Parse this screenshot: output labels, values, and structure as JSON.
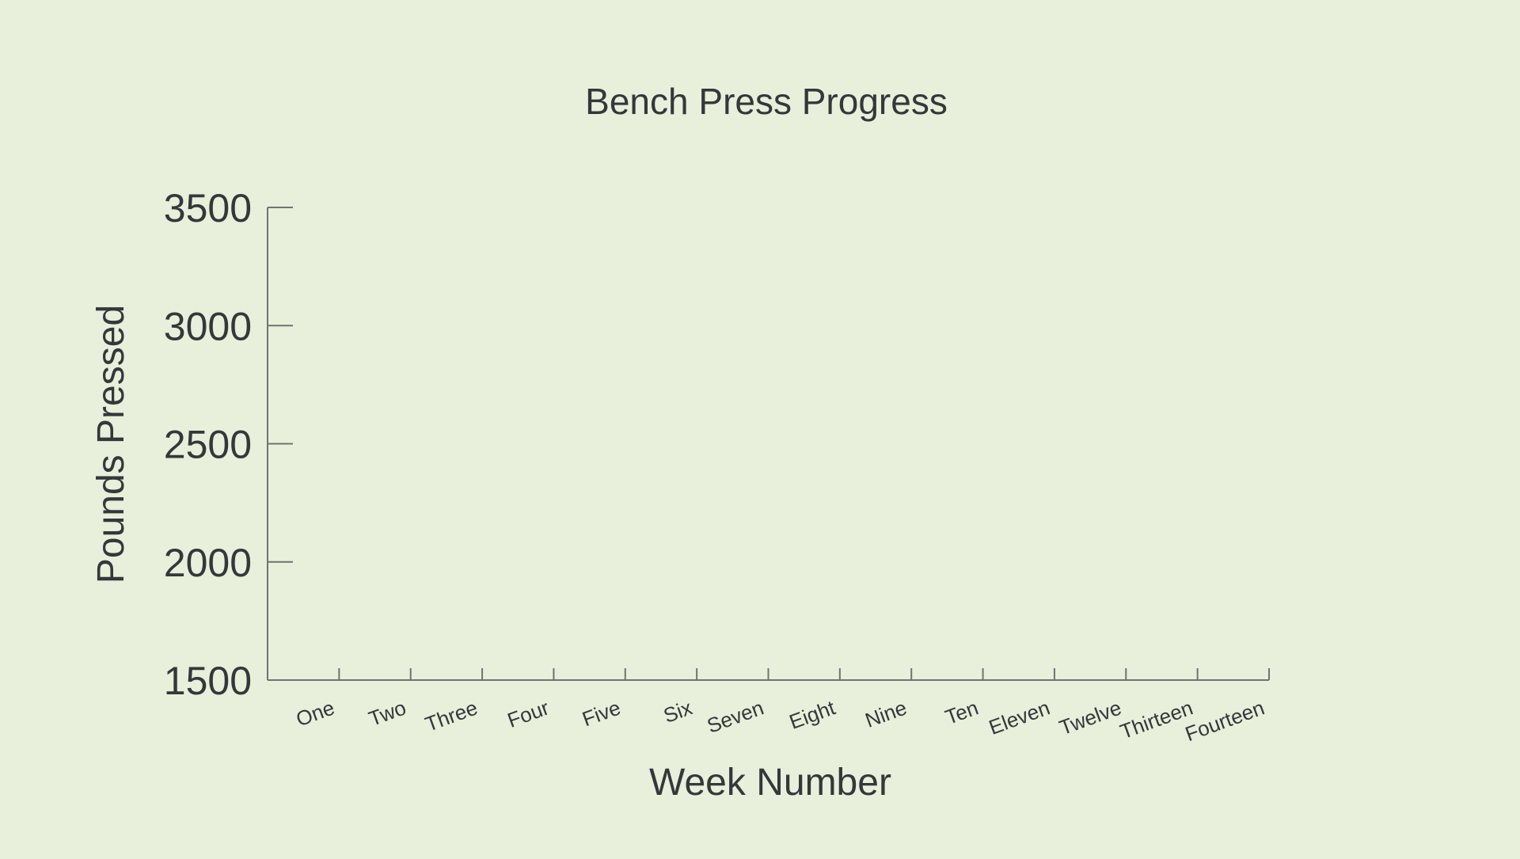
{
  "colors": {
    "background": "#e8efdb",
    "text": "#33383a",
    "axis": "#6f7472"
  },
  "chart_data": {
    "type": "line",
    "title": "Bench Press Progress",
    "xlabel": "Week Number",
    "ylabel": "Pounds Pressed",
    "categories": [
      "One",
      "Two",
      "Three",
      "Four",
      "Five",
      "Six",
      "Seven",
      "Eight",
      "Nine",
      "Ten",
      "Eleven",
      "Twelve",
      "Thirteen",
      "Fourteen"
    ],
    "yticks": [
      1500,
      2000,
      2500,
      3000,
      3500
    ],
    "ytick_labels": [
      "1500",
      "2000",
      "2500",
      "3000",
      "3500"
    ],
    "ylim": [
      1500,
      3500
    ],
    "series": [],
    "grid": false,
    "legend": "none"
  }
}
